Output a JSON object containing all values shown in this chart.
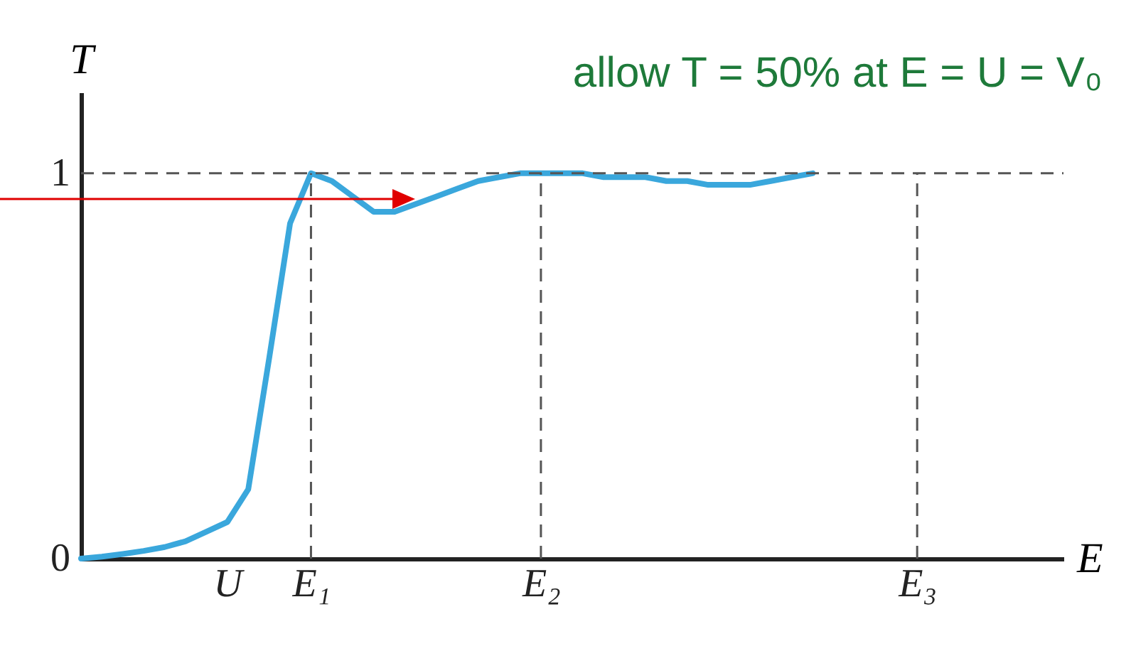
{
  "chart_data": {
    "type": "line",
    "title": "allow T = 50% at E = U = V₀",
    "xlabel": "E",
    "ylabel": "T",
    "categories": [
      null,
      null,
      null,
      null,
      null,
      null,
      null,
      "U",
      null,
      null,
      null,
      "E₁",
      null,
      null,
      null,
      null,
      null,
      null,
      null,
      null,
      null,
      null,
      "E₂",
      null,
      null,
      null,
      null,
      null,
      null,
      null,
      null,
      null,
      null,
      null,
      null,
      null,
      null,
      null,
      null,
      null,
      "E₃",
      null,
      null,
      null,
      null,
      null,
      null,
      null
    ],
    "series": [
      {
        "color": "#3aa7dc",
        "values": [
          0,
          0.005,
          0.012,
          0.02,
          0.03,
          0.045,
          0.07,
          0.095,
          0.18,
          0.52,
          0.87,
          1.0,
          0.98,
          0.94,
          0.9,
          0.9,
          0.92,
          0.94,
          0.96,
          0.98,
          0.99,
          1.0,
          1.0,
          1.0,
          1.0,
          0.99,
          0.99,
          0.99,
          0.98,
          0.98,
          0.97,
          0.97,
          0.97,
          0.98,
          0.99,
          1.0,
          null,
          null,
          null,
          null,
          null,
          null,
          null,
          null,
          null,
          null,
          null,
          null
        ]
      }
    ],
    "ylim": [
      0,
      1.21
    ],
    "yticks": [
      0,
      1
    ],
    "ref_lines": [
      {
        "axis": "y",
        "value": 1,
        "line_style": "dashed",
        "color": "#555555"
      },
      {
        "axis": "x",
        "value": "E₁",
        "line_style": "dashed",
        "color": "#555555"
      },
      {
        "axis": "x",
        "value": "E₂",
        "line_style": "dashed",
        "color": "#555555"
      },
      {
        "axis": "x",
        "value": "E₃",
        "line_style": "dashed",
        "color": "#555555"
      }
    ],
    "grid": false,
    "marker": "none",
    "line_style": "solid"
  }
}
